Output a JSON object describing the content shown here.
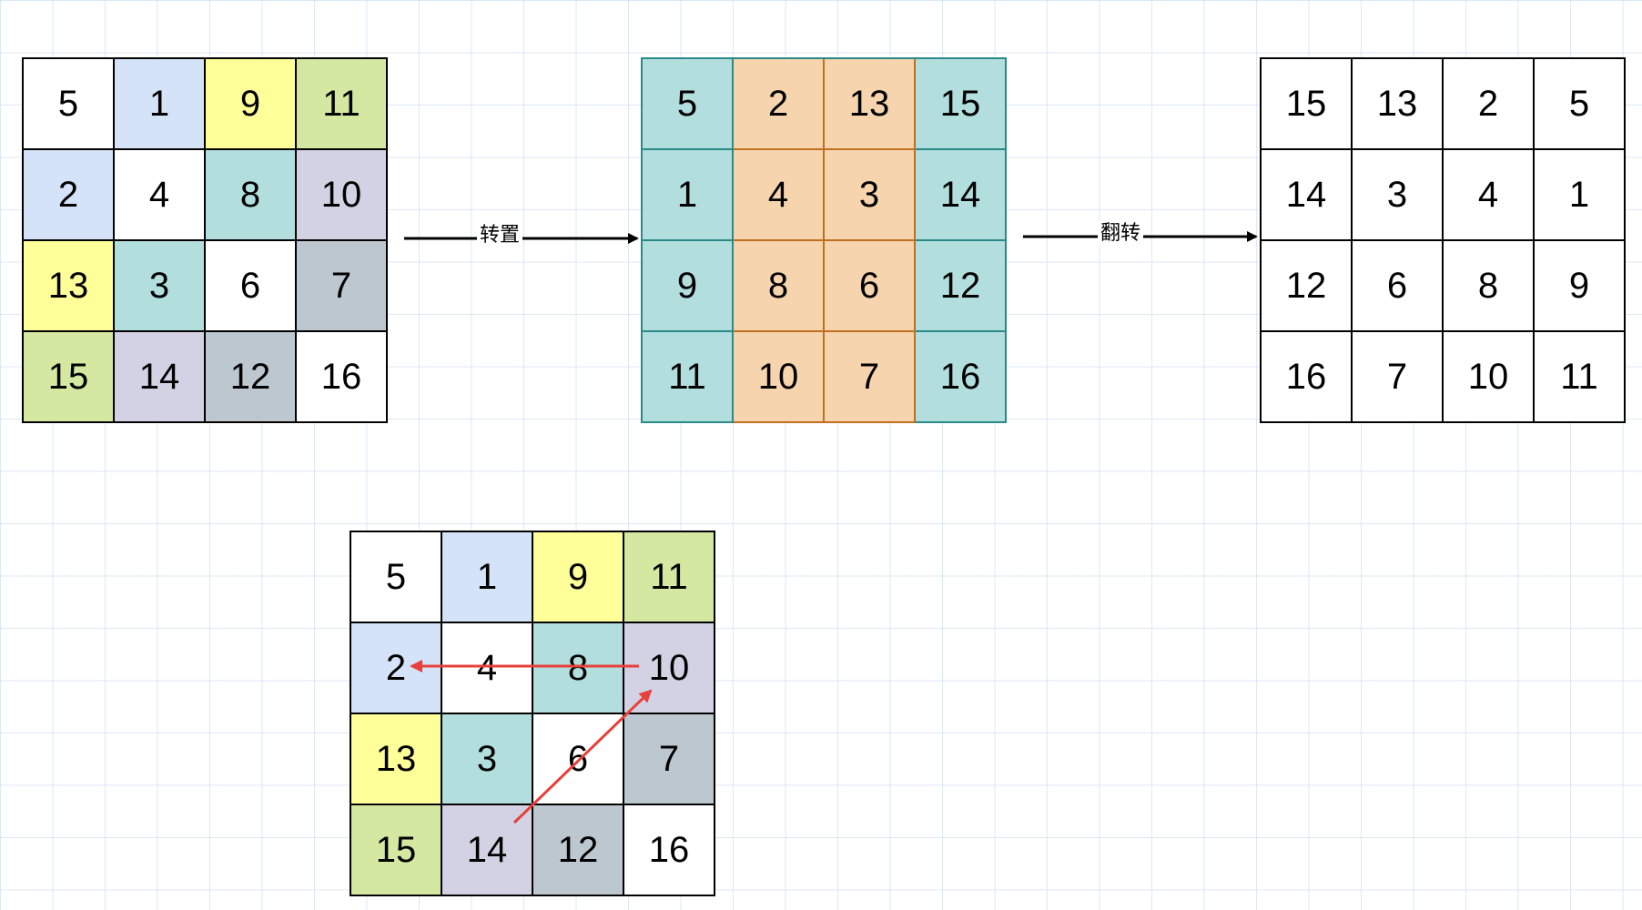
{
  "colors": {
    "white": "#ffffff",
    "blue": "#d4e3f7",
    "yellow": "#ffff99",
    "green": "#d5e8a1",
    "teal": "#b2dede",
    "purple": "#d3d1e4",
    "gray": "#bcc7d0",
    "orange": "#f6d4ae",
    "red_arrow": "#e8403a"
  },
  "grids": {
    "original": {
      "cells": [
        {
          "value": "5",
          "color": "white"
        },
        {
          "value": "1",
          "color": "blue"
        },
        {
          "value": "9",
          "color": "yellow"
        },
        {
          "value": "11",
          "color": "green"
        },
        {
          "value": "2",
          "color": "blue"
        },
        {
          "value": "4",
          "color": "white"
        },
        {
          "value": "8",
          "color": "teal"
        },
        {
          "value": "10",
          "color": "purple"
        },
        {
          "value": "13",
          "color": "yellow"
        },
        {
          "value": "3",
          "color": "teal"
        },
        {
          "value": "6",
          "color": "white"
        },
        {
          "value": "7",
          "color": "gray"
        },
        {
          "value": "15",
          "color": "green"
        },
        {
          "value": "14",
          "color": "purple"
        },
        {
          "value": "12",
          "color": "gray"
        },
        {
          "value": "16",
          "color": "white"
        }
      ]
    },
    "transposed": {
      "cells": [
        {
          "value": "5",
          "color": "teal"
        },
        {
          "value": "2",
          "color": "orange"
        },
        {
          "value": "13",
          "color": "orange"
        },
        {
          "value": "15",
          "color": "teal"
        },
        {
          "value": "1",
          "color": "teal"
        },
        {
          "value": "4",
          "color": "orange"
        },
        {
          "value": "3",
          "color": "orange"
        },
        {
          "value": "14",
          "color": "teal"
        },
        {
          "value": "9",
          "color": "teal"
        },
        {
          "value": "8",
          "color": "orange"
        },
        {
          "value": "6",
          "color": "orange"
        },
        {
          "value": "12",
          "color": "teal"
        },
        {
          "value": "11",
          "color": "teal"
        },
        {
          "value": "10",
          "color": "orange"
        },
        {
          "value": "7",
          "color": "orange"
        },
        {
          "value": "16",
          "color": "teal"
        }
      ]
    },
    "flipped": {
      "cells": [
        {
          "value": "15",
          "color": "white"
        },
        {
          "value": "13",
          "color": "white"
        },
        {
          "value": "2",
          "color": "white"
        },
        {
          "value": "5",
          "color": "white"
        },
        {
          "value": "14",
          "color": "white"
        },
        {
          "value": "3",
          "color": "white"
        },
        {
          "value": "4",
          "color": "white"
        },
        {
          "value": "1",
          "color": "white"
        },
        {
          "value": "12",
          "color": "white"
        },
        {
          "value": "6",
          "color": "white"
        },
        {
          "value": "8",
          "color": "white"
        },
        {
          "value": "9",
          "color": "white"
        },
        {
          "value": "16",
          "color": "white"
        },
        {
          "value": "7",
          "color": "white"
        },
        {
          "value": "10",
          "color": "white"
        },
        {
          "value": "11",
          "color": "white"
        }
      ]
    },
    "example": {
      "cells": [
        {
          "value": "5",
          "color": "white"
        },
        {
          "value": "1",
          "color": "blue"
        },
        {
          "value": "9",
          "color": "yellow"
        },
        {
          "value": "11",
          "color": "green"
        },
        {
          "value": "2",
          "color": "blue"
        },
        {
          "value": "4",
          "color": "white"
        },
        {
          "value": "8",
          "color": "teal"
        },
        {
          "value": "10",
          "color": "purple"
        },
        {
          "value": "13",
          "color": "yellow"
        },
        {
          "value": "3",
          "color": "teal"
        },
        {
          "value": "6",
          "color": "white"
        },
        {
          "value": "7",
          "color": "gray"
        },
        {
          "value": "15",
          "color": "green"
        },
        {
          "value": "14",
          "color": "purple"
        },
        {
          "value": "12",
          "color": "gray"
        },
        {
          "value": "16",
          "color": "white"
        }
      ]
    }
  },
  "arrows": {
    "transpose_label": "转置",
    "flip_label": "翻转"
  }
}
